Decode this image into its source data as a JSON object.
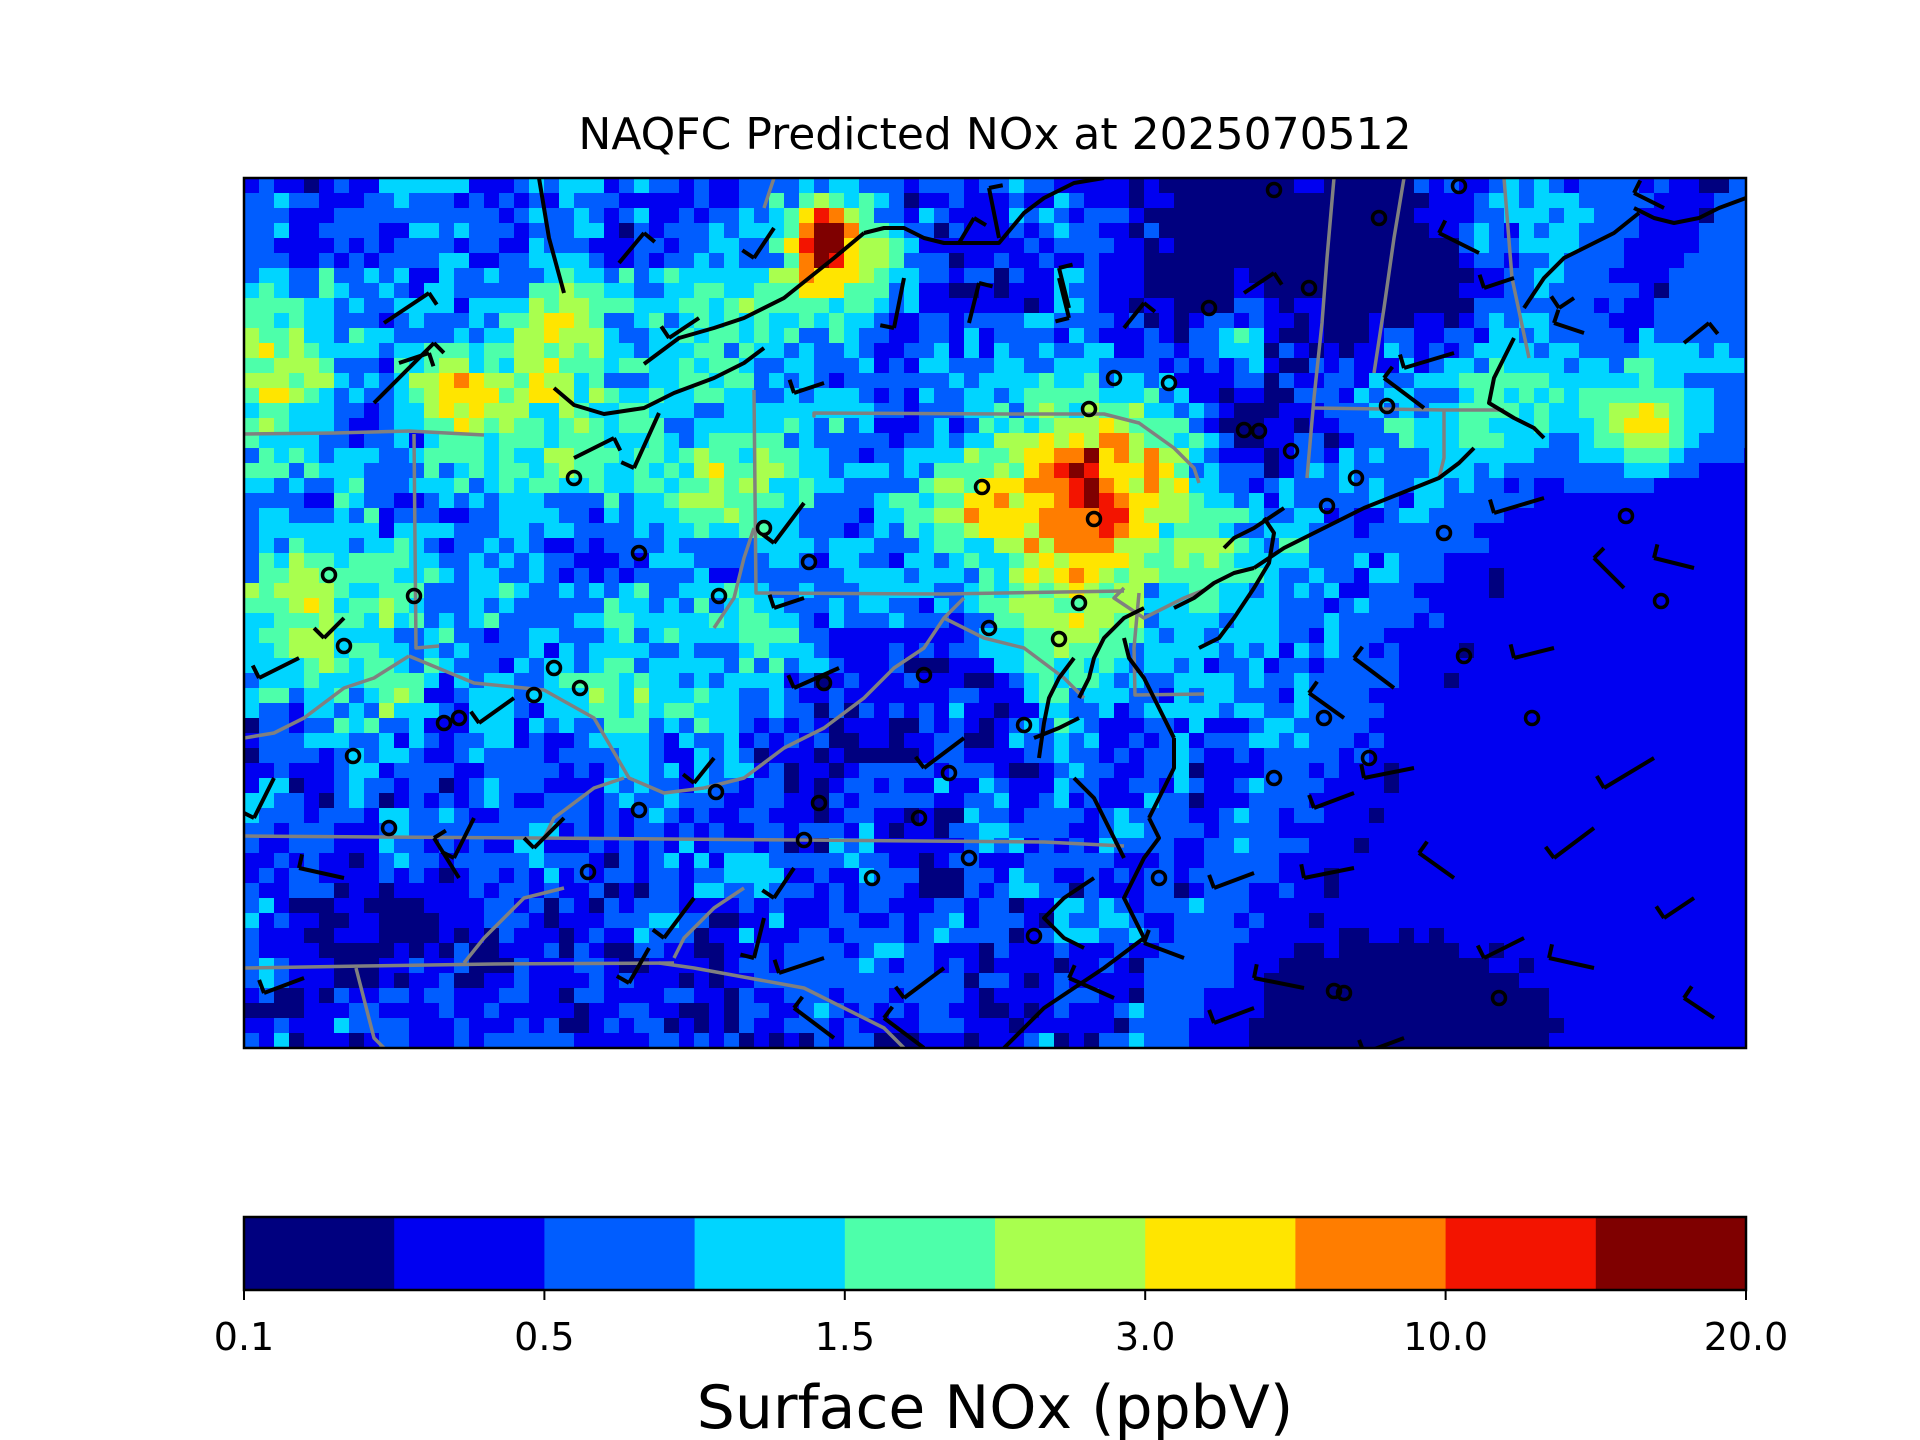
{
  "title": "NAQFC Predicted NOx at 2025070512",
  "colorbar": {
    "label": "Surface NOx (ppbV)",
    "tick_labels": [
      "0.1",
      "0.5",
      "1.5",
      "3.0",
      "10.0",
      "20.0"
    ],
    "colors": [
      "#00007f",
      "#0000f1",
      "#005dff",
      "#00d5ff",
      "#4dffaa",
      "#a9ff4e",
      "#ffe500",
      "#ff7d00",
      "#f31400",
      "#7f0000"
    ]
  },
  "map": {
    "ocean_color": "#0000f1",
    "coast_color": "#000000",
    "state_border_color": "#808080",
    "symbols": [
      "wind-barb",
      "monitor-station-circle"
    ]
  }
}
